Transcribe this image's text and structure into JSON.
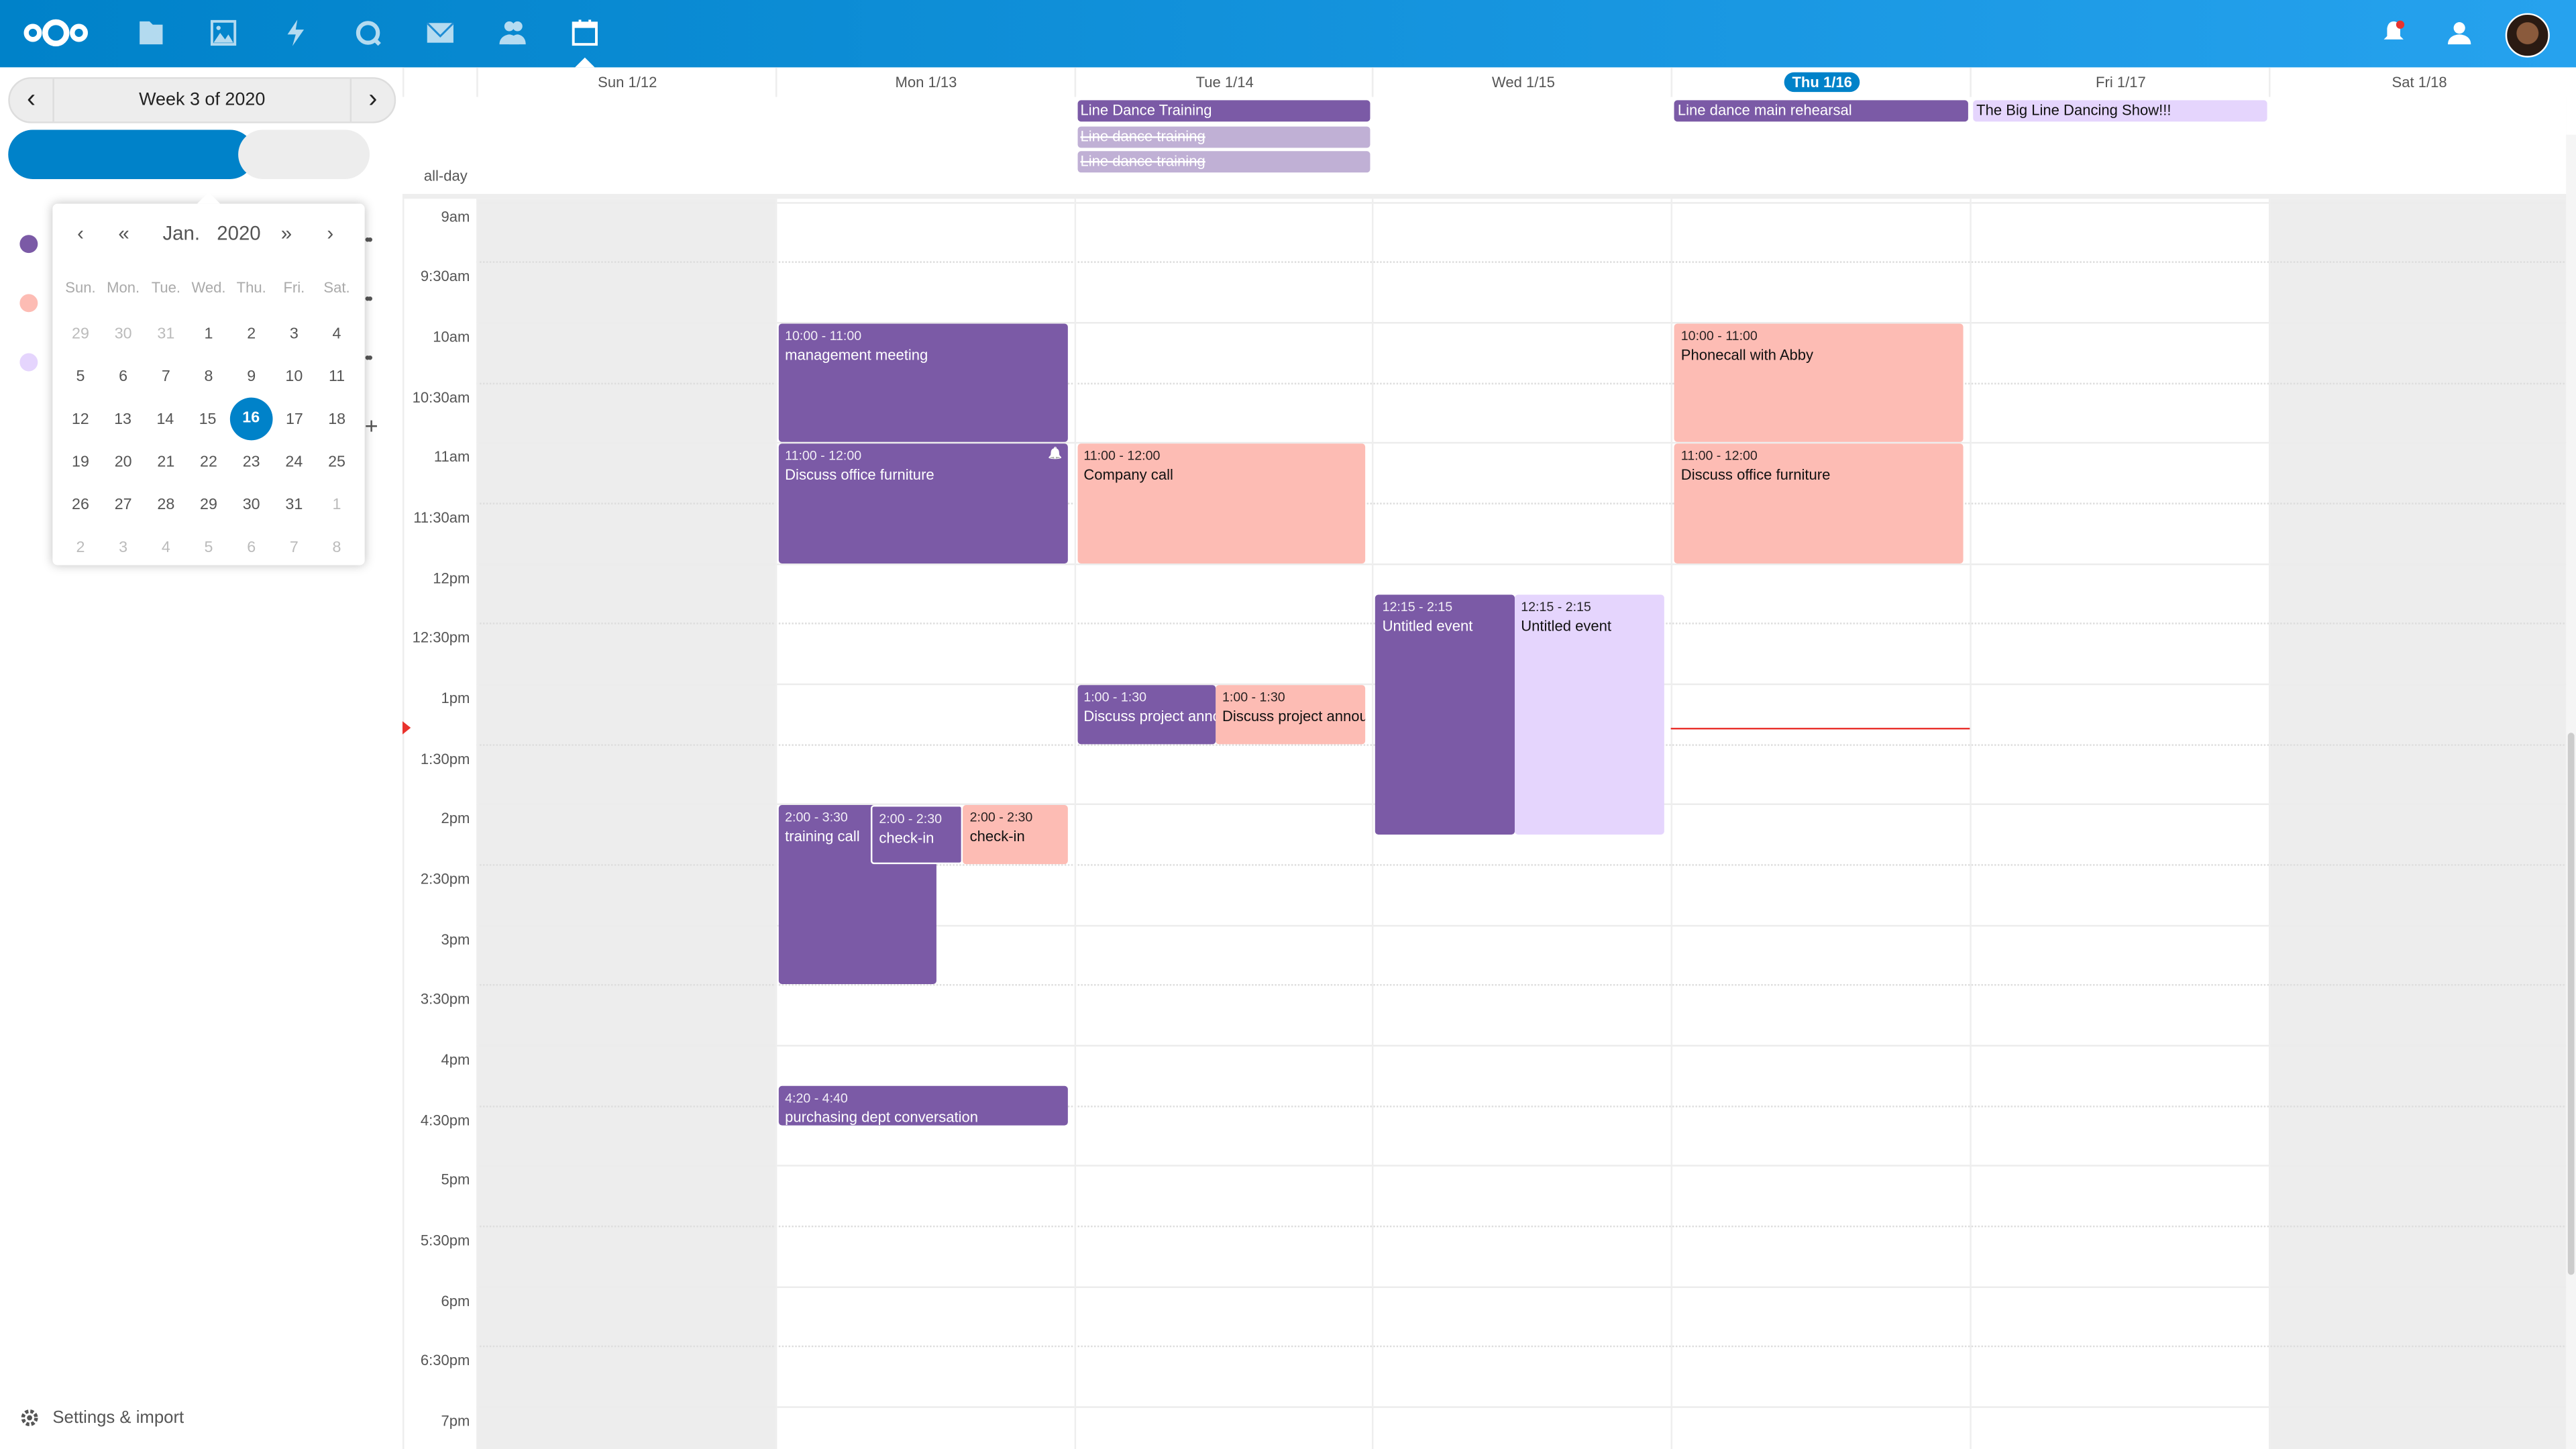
{
  "colors": {
    "accent": "#0082c9",
    "purple": "#7b5aa6",
    "pink": "#fdbcb4",
    "lavender": "#e5d5fd",
    "faded": "#c0b0d5",
    "now": "#e9322d"
  },
  "header": {
    "apps": [
      "logo-icon",
      "files-icon",
      "photos-icon",
      "activity-icon",
      "talk-icon",
      "mail-icon",
      "contacts-icon",
      "calendar-icon"
    ],
    "active": "calendar-icon",
    "right": [
      "notifications-icon",
      "contacts-menu-icon",
      "avatar"
    ]
  },
  "sidebar": {
    "week_label": "Week 3 of 2020",
    "calendars": [
      {
        "color": "#7b5aa6"
      },
      {
        "color": "#fdbcb4"
      },
      {
        "color": "#e5d5fd"
      }
    ],
    "settings_label": "Settings & import"
  },
  "datepicker": {
    "month": "Jan.",
    "year": "2020",
    "weekdays": [
      "Sun.",
      "Mon.",
      "Tue.",
      "Wed.",
      "Thu.",
      "Fri.",
      "Sat."
    ],
    "weeks": [
      [
        "29",
        "30",
        "31",
        "1",
        "2",
        "3",
        "4"
      ],
      [
        "5",
        "6",
        "7",
        "8",
        "9",
        "10",
        "11"
      ],
      [
        "12",
        "13",
        "14",
        "15",
        "16",
        "17",
        "18"
      ],
      [
        "19",
        "20",
        "21",
        "22",
        "23",
        "24",
        "25"
      ],
      [
        "26",
        "27",
        "28",
        "29",
        "30",
        "31",
        "1"
      ],
      [
        "2",
        "3",
        "4",
        "5",
        "6",
        "7",
        "8"
      ]
    ],
    "selected": "16"
  },
  "days": [
    {
      "label": "Sun 1/12"
    },
    {
      "label": "Mon 1/13"
    },
    {
      "label": "Tue 1/14"
    },
    {
      "label": "Wed 1/15"
    },
    {
      "label": "Thu 1/16",
      "today": true
    },
    {
      "label": "Fri 1/17"
    },
    {
      "label": "Sat 1/18"
    }
  ],
  "allday_label": "all-day",
  "allday_events": [
    {
      "day": 2,
      "title": "Line Dance Training",
      "color": "purple"
    },
    {
      "day": 2,
      "title": "Line dance training",
      "color": "faded",
      "cancelled": true
    },
    {
      "day": 2,
      "title": "Line dance training",
      "color": "faded",
      "cancelled": true
    },
    {
      "day": 4,
      "title": "Line dance main rehearsal",
      "color": "purple"
    },
    {
      "day": 5,
      "title": "The Big Line Dancing Show!!!",
      "color": "lavender"
    }
  ],
  "time_labels": [
    "9am",
    "9:30am",
    "10am",
    "10:30am",
    "11am",
    "11:30am",
    "12pm",
    "12:30pm",
    "1pm",
    "1:30pm",
    "2pm",
    "2:30pm",
    "3pm",
    "3:30pm",
    "4pm",
    "4:30pm",
    "5pm",
    "5:30pm",
    "6pm",
    "6:30pm",
    "7pm"
  ],
  "events": [
    {
      "day": 1,
      "time": "10:00 - 11:00",
      "title": "management meeting",
      "start": 10,
      "end": 11,
      "color": "purple"
    },
    {
      "day": 1,
      "time": "11:00 - 12:00",
      "title": "Discuss office furniture",
      "start": 11,
      "end": 12,
      "color": "purple",
      "alarm": true
    },
    {
      "day": 1,
      "time": "2:00 - 3:30",
      "title": "training call",
      "start": 14,
      "end": 15.5,
      "color": "purple"
    },
    {
      "day": 1,
      "time": "2:00 - 2:30",
      "title": "check-in",
      "start": 14,
      "end": 14.5,
      "color": "purple"
    },
    {
      "day": 1,
      "time": "2:00 - 2:30",
      "title": "check-in",
      "start": 14,
      "end": 14.5,
      "color": "pink"
    },
    {
      "day": 1,
      "time": "4:20 - 4:40",
      "title": "purchasing dept conversation",
      "start": 16.333,
      "end": 16.667,
      "color": "purple"
    },
    {
      "day": 2,
      "time": "11:00 - 12:00",
      "title": "Company call",
      "start": 11,
      "end": 12,
      "color": "pink"
    },
    {
      "day": 2,
      "time": "1:00 - 1:30",
      "title": "Discuss project announcement",
      "start": 13,
      "end": 13.5,
      "color": "purple"
    },
    {
      "day": 2,
      "time": "1:00 - 1:30",
      "title": "Discuss project announcement",
      "start": 13,
      "end": 13.5,
      "color": "pink"
    },
    {
      "day": 3,
      "time": "12:15 - 2:15",
      "title": "Untitled event",
      "start": 12.25,
      "end": 14.25,
      "color": "purple"
    },
    {
      "day": 3,
      "time": "12:15 - 2:15",
      "title": "Untitled event",
      "start": 12.25,
      "end": 14.25,
      "color": "lavender"
    },
    {
      "day": 4,
      "time": "10:00 - 11:00",
      "title": "Phonecall with Abby",
      "start": 10,
      "end": 11,
      "color": "pink"
    },
    {
      "day": 4,
      "time": "11:00 - 12:00",
      "title": "Discuss office furniture",
      "start": 11,
      "end": 12,
      "color": "pink"
    }
  ],
  "now": {
    "day": 4,
    "time": 13.37
  }
}
